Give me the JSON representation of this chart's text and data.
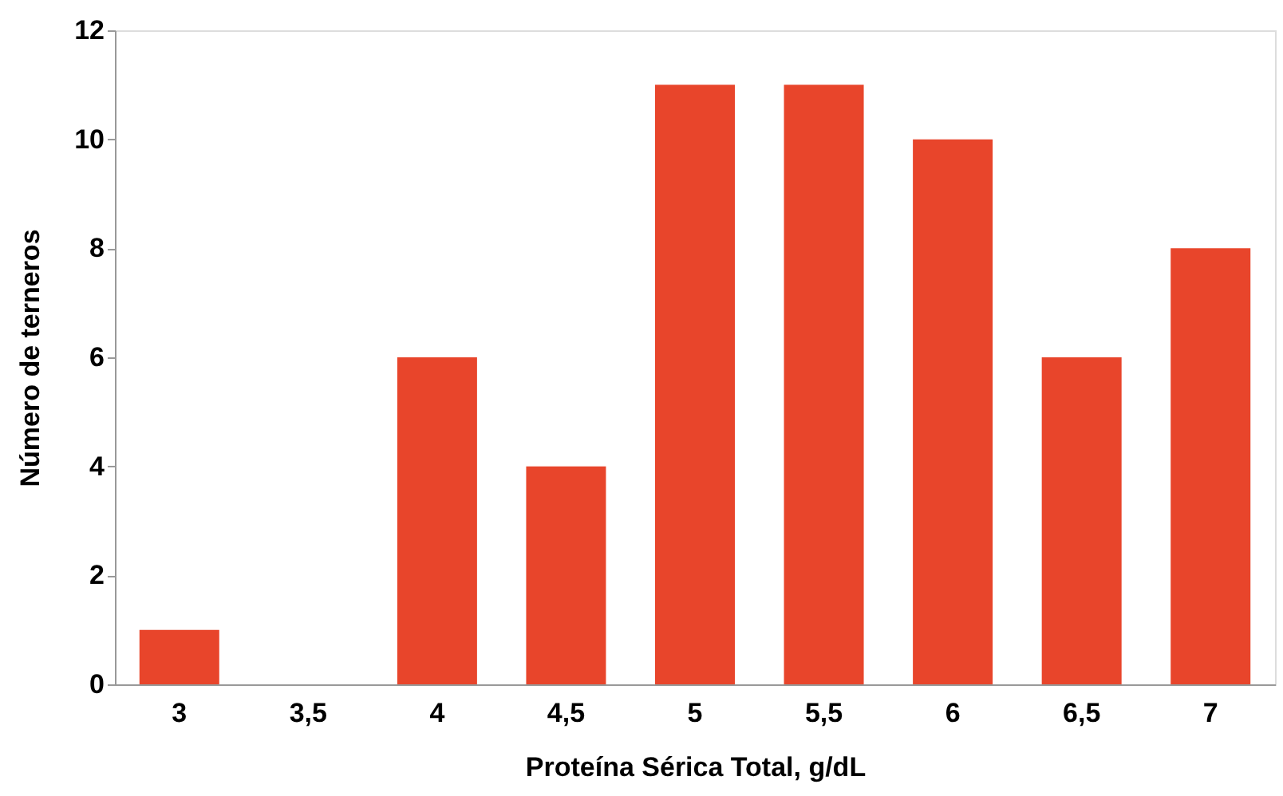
{
  "chart_data": {
    "type": "bar",
    "xlabel": "Proteína Sérica Total, g/dL",
    "ylabel": "Número de terneros",
    "categories": [
      "3",
      "3,5",
      "4",
      "4,5",
      "5",
      "5,5",
      "6",
      "6,5",
      "7"
    ],
    "values": [
      1,
      0,
      6,
      4,
      11,
      11,
      10,
      6,
      8
    ],
    "color": "#e8452b",
    "ylim": [
      0,
      12
    ],
    "yticks": [
      0,
      2,
      4,
      6,
      8,
      10,
      12
    ],
    "grid": false
  }
}
